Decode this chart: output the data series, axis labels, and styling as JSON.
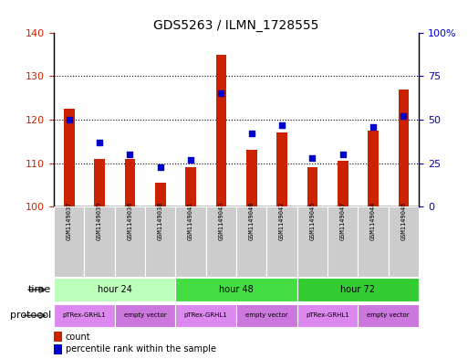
{
  "title": "GDS5263 / ILMN_1728555",
  "samples": [
    "GSM1149037",
    "GSM1149039",
    "GSM1149036",
    "GSM1149038",
    "GSM1149041",
    "GSM1149043",
    "GSM1149040",
    "GSM1149042",
    "GSM1149045",
    "GSM1149047",
    "GSM1149044",
    "GSM1149046"
  ],
  "count_values": [
    122.5,
    111.0,
    111.0,
    105.5,
    109.0,
    135.0,
    113.0,
    117.0,
    109.0,
    110.5,
    117.5,
    127.0
  ],
  "percentile_values": [
    50,
    37,
    30,
    23,
    27,
    65,
    42,
    47,
    28,
    30,
    46,
    52
  ],
  "ylim_left": [
    100,
    140
  ],
  "ylim_right": [
    0,
    100
  ],
  "yticks_left": [
    100,
    110,
    120,
    130,
    140
  ],
  "yticks_right": [
    0,
    25,
    50,
    75,
    100
  ],
  "yticklabels_right": [
    "0",
    "25",
    "50",
    "75",
    "100%"
  ],
  "bar_color": "#cc2200",
  "scatter_color": "#0000cc",
  "bg_color": "#ffffff",
  "grid_color": "black",
  "time_colors": [
    "#bbffbb",
    "#44dd44",
    "#33cc33"
  ],
  "protocol_colors": [
    "#dd88ee",
    "#cc77dd"
  ],
  "tick_label_color_left": "#cc2200",
  "tick_label_color_right": "#0000cc",
  "legend_count_color": "#cc2200",
  "legend_pct_color": "#0000cc"
}
